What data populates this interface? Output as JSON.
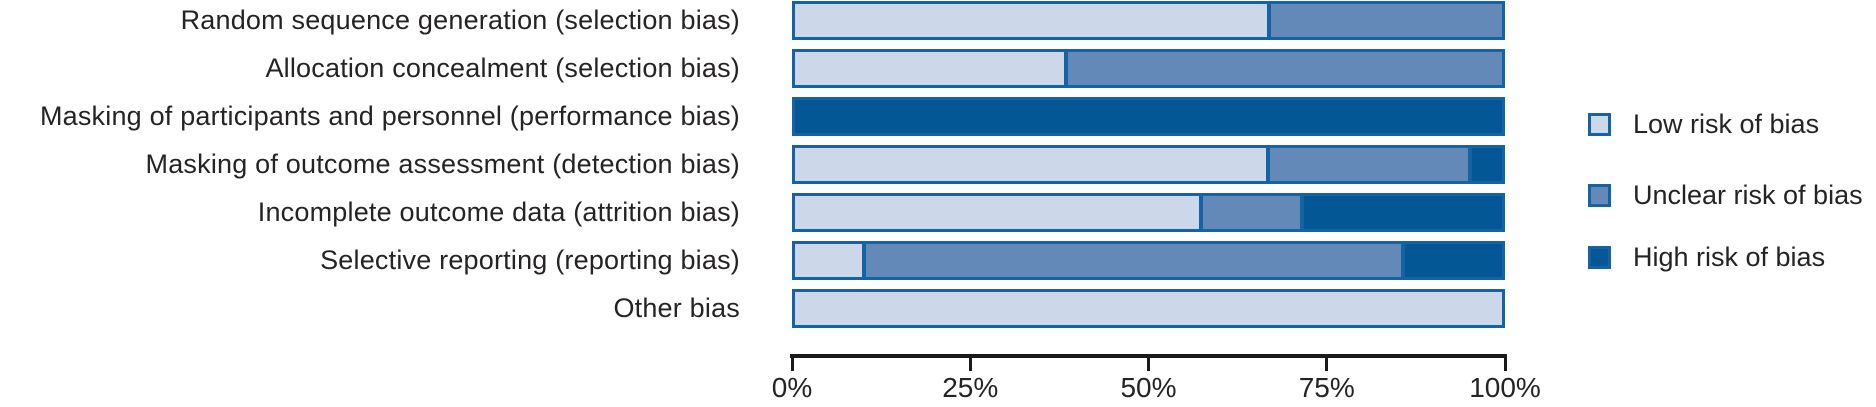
{
  "chart_data": {
    "type": "bar",
    "orientation": "horizontal",
    "stacked": true,
    "unit": "percent",
    "title": "",
    "categories": [
      "Random sequence generation (selection bias)",
      "Allocation concealment (selection bias)",
      "Masking of participants and personnel (performance bias)",
      "Masking of outcome assessment (detection bias)",
      "Incomplete outcome data (attrition bias)",
      "Selective reporting (reporting bias)",
      "Other bias"
    ],
    "series": [
      {
        "name": "Low risk of bias",
        "color": "#ccd8ea",
        "values": [
          66.7,
          38.1,
          0,
          66.7,
          57.1,
          9.5,
          100
        ]
      },
      {
        "name": "Unclear risk of bias",
        "color": "#6289b8",
        "values": [
          33.3,
          61.9,
          0,
          28.6,
          14.3,
          76.2,
          0
        ]
      },
      {
        "name": "High risk of bias",
        "color": "#035795",
        "values": [
          0,
          0,
          100,
          4.8,
          28.6,
          14.3,
          0
        ]
      }
    ],
    "x_axis": {
      "min": 0,
      "max": 100,
      "ticks": [
        "0%",
        "25%",
        "50%",
        "75%",
        "100%"
      ]
    },
    "legend": {
      "position": "right",
      "entries": [
        "Low risk of bias",
        "Unclear risk of bias",
        "High risk of bias"
      ]
    },
    "colors": {
      "bar_border": "#1563a5",
      "axis": "#1a1a1a",
      "text": "#262324",
      "background": "#ffffff"
    },
    "grid": false
  }
}
